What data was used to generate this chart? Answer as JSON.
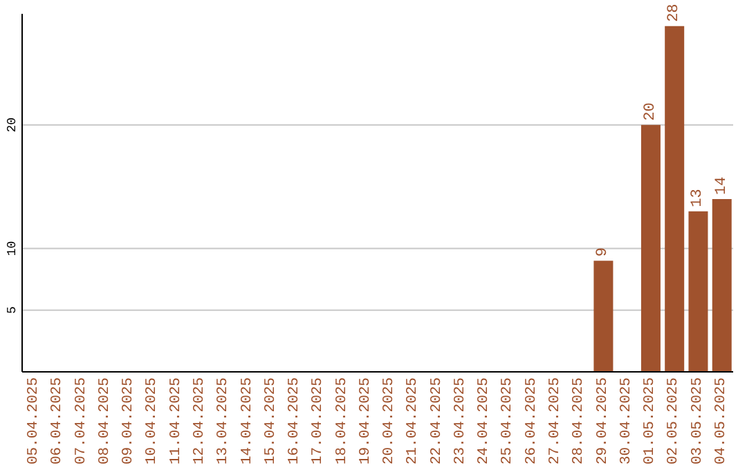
{
  "chart_data": {
    "type": "bar",
    "categories": [
      "05.04.2025",
      "06.04.2025",
      "07.04.2025",
      "08.04.2025",
      "09.04.2025",
      "10.04.2025",
      "11.04.2025",
      "12.04.2025",
      "13.04.2025",
      "14.04.2025",
      "15.04.2025",
      "16.04.2025",
      "17.04.2025",
      "18.04.2025",
      "19.04.2025",
      "20.04.2025",
      "21.04.2025",
      "22.04.2025",
      "23.04.2025",
      "24.04.2025",
      "25.04.2025",
      "26.04.2025",
      "27.04.2025",
      "28.04.2025",
      "29.04.2025",
      "30.04.2025",
      "01.05.2025",
      "02.05.2025",
      "03.05.2025",
      "04.05.2025"
    ],
    "values": [
      0,
      0,
      0,
      0,
      0,
      0,
      0,
      0,
      0,
      0,
      0,
      0,
      0,
      0,
      0,
      0,
      0,
      0,
      0,
      0,
      0,
      0,
      0,
      0,
      9,
      0,
      20,
      28,
      13,
      14
    ],
    "value_labels": [
      null,
      null,
      null,
      null,
      null,
      null,
      null,
      null,
      null,
      null,
      null,
      null,
      null,
      null,
      null,
      null,
      null,
      null,
      null,
      null,
      null,
      null,
      null,
      null,
      "9",
      null,
      "20",
      "28",
      "13",
      "14"
    ],
    "color": "#a0522d",
    "ylim": [
      0,
      29
    ],
    "yticks": [
      5,
      10,
      20
    ],
    "grid": "y"
  }
}
